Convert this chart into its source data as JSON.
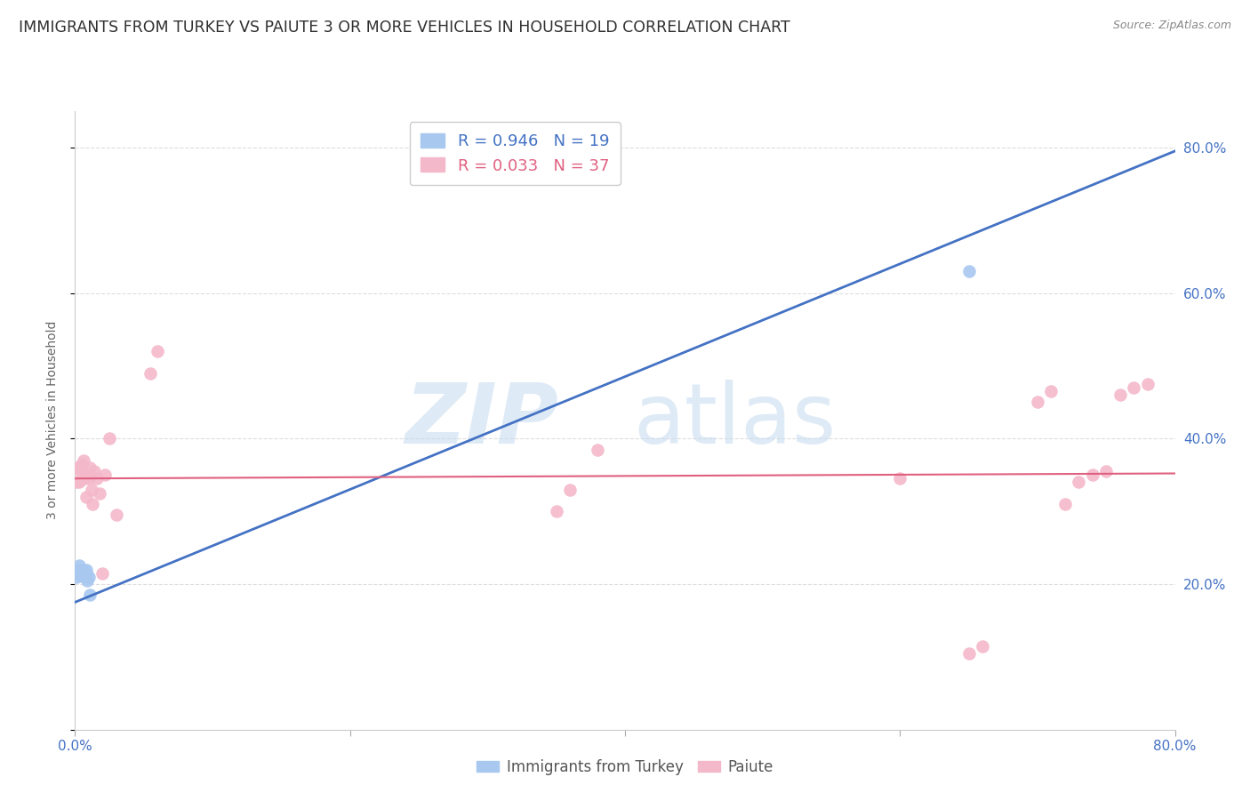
{
  "title": "IMMIGRANTS FROM TURKEY VS PAIUTE 3 OR MORE VEHICLES IN HOUSEHOLD CORRELATION CHART",
  "source": "Source: ZipAtlas.com",
  "ylabel": "3 or more Vehicles in Household",
  "xlim": [
    0.0,
    0.8
  ],
  "ylim": [
    0.0,
    0.85
  ],
  "x_ticks": [
    0.0,
    0.2,
    0.4,
    0.6,
    0.8
  ],
  "x_tick_labels": [
    "0.0%",
    "",
    "",
    "",
    "80.0%"
  ],
  "y_ticks": [
    0.0,
    0.2,
    0.4,
    0.6,
    0.8
  ],
  "y_tick_labels_right": [
    "",
    "20.0%",
    "40.0%",
    "60.0%",
    "80.0%"
  ],
  "bg_color": "#FFFFFF",
  "grid_color": "#DDDDDD",
  "blue_dot_color": "#A8C8F0",
  "pink_dot_color": "#F4B8CB",
  "blue_line_color": "#4472C4",
  "pink_line_color": "#E06080",
  "axis_label_color": "#4472C4",
  "title_color": "#303030",
  "title_fontsize": 12.5,
  "axis_label_fontsize": 10,
  "tick_fontsize": 11,
  "blue_scatter_x": [
    0.001,
    0.002,
    0.002,
    0.003,
    0.003,
    0.004,
    0.004,
    0.005,
    0.005,
    0.006,
    0.006,
    0.007,
    0.007,
    0.008,
    0.008,
    0.009,
    0.01,
    0.011,
    0.65
  ],
  "blue_scatter_y": [
    0.21,
    0.215,
    0.22,
    0.215,
    0.225,
    0.215,
    0.22,
    0.218,
    0.212,
    0.215,
    0.22,
    0.215,
    0.21,
    0.215,
    0.22,
    0.205,
    0.21,
    0.185,
    0.63
  ],
  "pink_scatter_x": [
    0.001,
    0.002,
    0.003,
    0.004,
    0.005,
    0.006,
    0.007,
    0.008,
    0.009,
    0.01,
    0.011,
    0.012,
    0.013,
    0.014,
    0.016,
    0.018,
    0.02,
    0.022,
    0.025,
    0.03,
    0.055,
    0.06,
    0.35,
    0.36,
    0.38,
    0.6,
    0.65,
    0.66,
    0.7,
    0.71,
    0.72,
    0.73,
    0.74,
    0.75,
    0.76,
    0.77,
    0.78
  ],
  "pink_scatter_y": [
    0.34,
    0.36,
    0.34,
    0.355,
    0.365,
    0.37,
    0.345,
    0.32,
    0.35,
    0.345,
    0.36,
    0.33,
    0.31,
    0.355,
    0.345,
    0.325,
    0.215,
    0.35,
    0.4,
    0.295,
    0.49,
    0.52,
    0.3,
    0.33,
    0.385,
    0.345,
    0.105,
    0.115,
    0.45,
    0.465,
    0.31,
    0.34,
    0.35,
    0.355,
    0.46,
    0.47,
    0.475
  ],
  "blue_line_x": [
    0.0,
    0.8
  ],
  "blue_line_y": [
    0.175,
    0.795
  ],
  "pink_line_x": [
    0.0,
    0.8
  ],
  "pink_line_y": [
    0.345,
    0.352
  ]
}
